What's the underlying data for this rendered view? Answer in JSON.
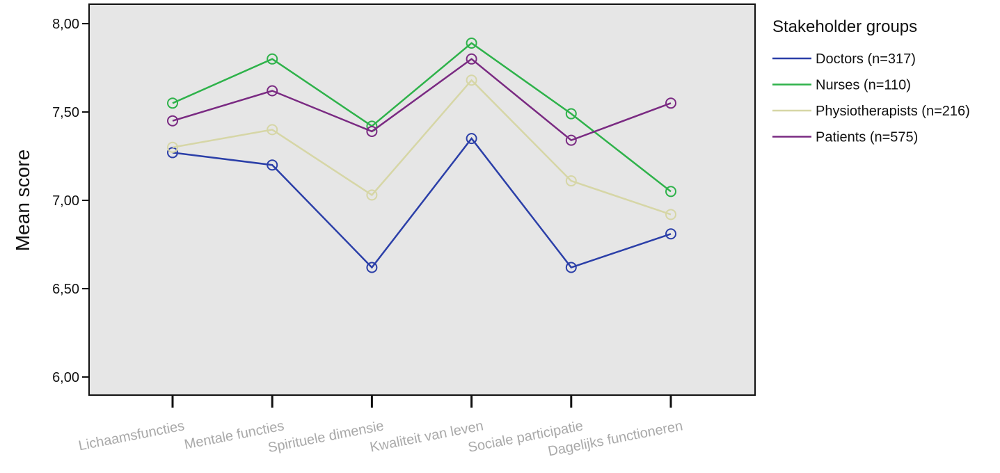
{
  "chart_data": {
    "type": "line",
    "ylabel": "Mean score",
    "ylim": [
      6.0,
      8.0
    ],
    "y_ticks": [
      "6,00",
      "6,50",
      "7,00",
      "7,50",
      "8,00"
    ],
    "y_tick_values": [
      6.0,
      6.5,
      7.0,
      7.5,
      8.0
    ],
    "categories": [
      "Lichaamsfuncties",
      "Mentale functies",
      "Spirituele dimensie",
      "Kwaliteit van leven",
      "Sociale participatie",
      "Dagelijks functioneren"
    ],
    "legend_title": "Stakeholder groups",
    "legend_position": "right",
    "plot_background": "#e6e6e6",
    "markers": "open circles",
    "series": [
      {
        "name": "Doctors (n=317)",
        "color": "#2b3fa8",
        "values": [
          7.27,
          7.2,
          6.62,
          7.35,
          6.62,
          6.81
        ]
      },
      {
        "name": "Nurses (n=110)",
        "color": "#2eb24a",
        "values": [
          7.55,
          7.8,
          7.42,
          7.89,
          7.49,
          7.05
        ]
      },
      {
        "name": "Physiotherapists (n=216)",
        "color": "#d6d6a6",
        "values": [
          7.3,
          7.4,
          7.03,
          7.68,
          7.11,
          6.92
        ]
      },
      {
        "name": "Patients (n=575)",
        "color": "#7a2a82",
        "values": [
          7.45,
          7.62,
          7.39,
          7.8,
          7.34,
          7.55
        ]
      }
    ]
  }
}
